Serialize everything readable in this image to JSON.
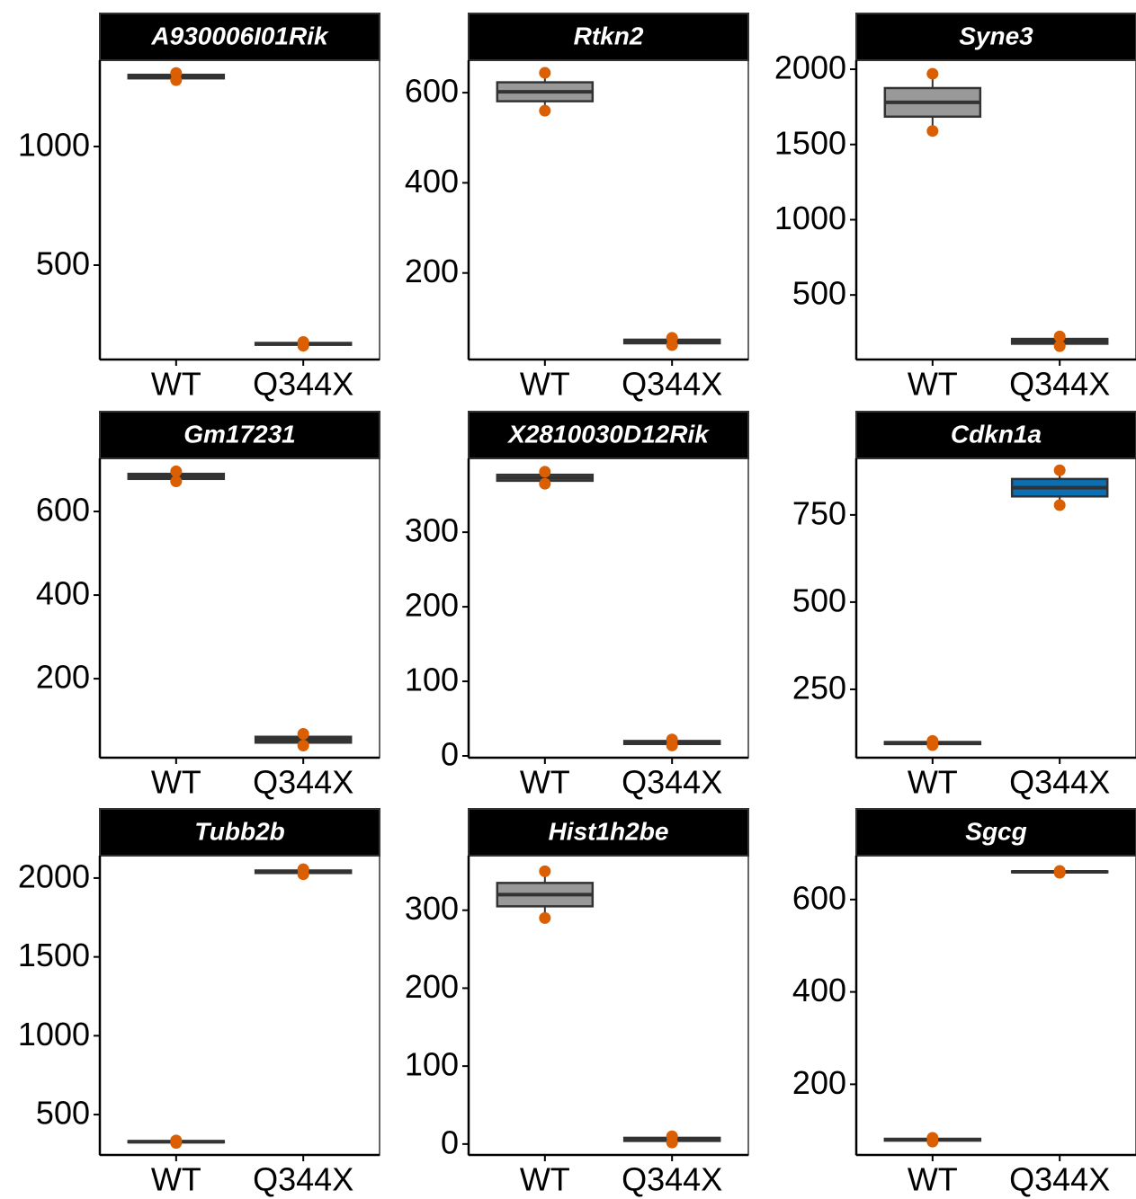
{
  "chart_data": [
    {
      "type": "box",
      "title": "A930006I01Rik",
      "categories": [
        "WT",
        "Q344X"
      ],
      "ylim": [
        102,
        1364
      ],
      "yticks": [
        500,
        1000
      ],
      "boxes": [
        {
          "min": 1280,
          "q1": 1287.5,
          "median": 1295,
          "q3": 1302.5,
          "max": 1310,
          "points": [
            1280,
            1310
          ],
          "color": "#999999"
        },
        {
          "min": 160,
          "q1": 164,
          "median": 168,
          "q3": 172,
          "max": 176,
          "points": [
            160,
            176
          ],
          "color": "#999999"
        }
      ]
    },
    {
      "type": "box",
      "title": "Rtkn2",
      "categories": [
        "WT",
        "Q344X"
      ],
      "ylim": [
        8,
        672
      ],
      "yticks": [
        200,
        400,
        600
      ],
      "boxes": [
        {
          "min": 560,
          "q1": 581,
          "median": 602,
          "q3": 623,
          "max": 644,
          "points": [
            560,
            644
          ],
          "color": "#999999"
        },
        {
          "min": 40,
          "q1": 44,
          "median": 48,
          "q3": 52,
          "max": 56,
          "points": [
            40,
            56
          ],
          "color": "#999999"
        }
      ]
    },
    {
      "type": "box",
      "title": "Syne3",
      "categories": [
        "WT",
        "Q344X"
      ],
      "ylim": [
        71,
        2060
      ],
      "yticks": [
        500,
        1000,
        1500,
        2000
      ],
      "boxes": [
        {
          "min": 1590,
          "q1": 1685,
          "median": 1780,
          "q3": 1875,
          "max": 1970,
          "points": [
            1590,
            1970
          ],
          "color": "#999999"
        },
        {
          "min": 160,
          "q1": 176,
          "median": 192,
          "q3": 208,
          "max": 224,
          "points": [
            160,
            224
          ],
          "color": "#999999"
        }
      ]
    },
    {
      "type": "box",
      "title": "Gm17231",
      "categories": [
        "WT",
        "Q344X"
      ],
      "ylim": [
        11,
        727
      ],
      "yticks": [
        200,
        400,
        600
      ],
      "boxes": [
        {
          "min": 672,
          "q1": 678,
          "median": 684,
          "q3": 690,
          "max": 696,
          "points": [
            672,
            696
          ],
          "color": "#999999"
        },
        {
          "min": 40,
          "q1": 47,
          "median": 54,
          "q3": 61,
          "max": 68,
          "points": [
            40,
            68
          ],
          "color": "#999999"
        }
      ]
    },
    {
      "type": "box",
      "title": "X2810030D12Rik",
      "categories": [
        "WT",
        "Q344X"
      ],
      "ylim": [
        -2.4,
        399
      ],
      "yticks": [
        0,
        100,
        200,
        300
      ],
      "boxes": [
        {
          "min": 365,
          "q1": 369,
          "median": 373,
          "q3": 377,
          "max": 381,
          "points": [
            365,
            381
          ],
          "color": "#999999"
        },
        {
          "min": 14,
          "q1": 16,
          "median": 18,
          "q3": 20,
          "max": 22,
          "points": [
            14,
            22
          ],
          "color": "#999999"
        }
      ]
    },
    {
      "type": "box",
      "title": "Cdkn1a",
      "categories": [
        "WT",
        "Q344X"
      ],
      "ylim": [
        54,
        912
      ],
      "yticks": [
        250,
        500,
        750
      ],
      "boxes": [
        {
          "min": 90,
          "q1": 93,
          "median": 96,
          "q3": 99,
          "max": 102,
          "points": [
            90,
            102
          ],
          "color": "#999999"
        },
        {
          "min": 778,
          "q1": 803,
          "median": 828,
          "q3": 853,
          "max": 878,
          "points": [
            778,
            878
          ],
          "color": "#0a6fb3"
        }
      ]
    },
    {
      "type": "box",
      "title": "Tubb2b",
      "categories": [
        "WT",
        "Q344X"
      ],
      "ylim": [
        244,
        2142
      ],
      "yticks": [
        500,
        1000,
        1500,
        2000
      ],
      "boxes": [
        {
          "min": 320,
          "q1": 324,
          "median": 328,
          "q3": 332,
          "max": 336,
          "points": [
            320,
            336
          ],
          "color": "#999999"
        },
        {
          "min": 2024,
          "q1": 2032,
          "median": 2040,
          "q3": 2048,
          "max": 2056,
          "points": [
            2024,
            2056
          ],
          "color": "#999999"
        }
      ]
    },
    {
      "type": "box",
      "title": "Hist1h2be",
      "categories": [
        "WT",
        "Q344X"
      ],
      "ylim": [
        -14,
        370
      ],
      "yticks": [
        0,
        100,
        200,
        300
      ],
      "boxes": [
        {
          "min": 290,
          "q1": 305,
          "median": 320,
          "q3": 335,
          "max": 350,
          "points": [
            290,
            350
          ],
          "color": "#999999"
        },
        {
          "min": 2,
          "q1": 4,
          "median": 6,
          "q3": 8,
          "max": 10,
          "points": [
            2,
            10
          ],
          "color": "#999999"
        }
      ]
    },
    {
      "type": "box",
      "title": "Sgcg",
      "categories": [
        "WT",
        "Q344X"
      ],
      "ylim": [
        47,
        695
      ],
      "yticks": [
        200,
        400,
        600
      ],
      "boxes": [
        {
          "min": 76,
          "q1": 78,
          "median": 80,
          "q3": 82,
          "max": 84,
          "points": [
            76,
            84
          ],
          "color": "#999999"
        },
        {
          "min": 658,
          "q1": 659,
          "median": 660,
          "q3": 661,
          "max": 662,
          "points": [
            658,
            662
          ],
          "color": "#999999"
        }
      ]
    }
  ]
}
